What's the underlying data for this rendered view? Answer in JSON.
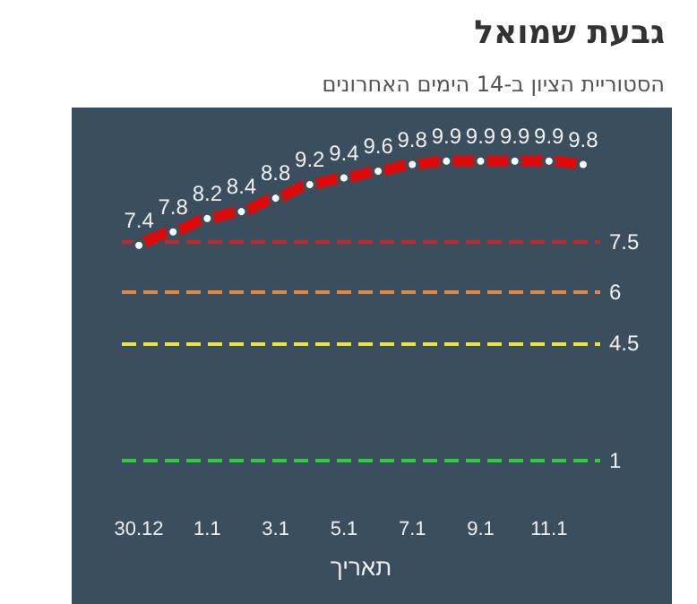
{
  "chart_data": {
    "type": "line",
    "title": "גבעת שמואל",
    "subtitle": "הסטוריית הציון ב-14 הימים האחרונים",
    "xlabel": "תאריך",
    "categories": [
      "30.12",
      null,
      "1.1",
      null,
      "3.1",
      null,
      "5.1",
      null,
      "7.1",
      null,
      "9.1",
      null,
      "11.1",
      null
    ],
    "series": [
      {
        "color": "#dd0a0a",
        "values": [
          7.4,
          7.8,
          8.2,
          8.4,
          8.8,
          9.2,
          9.4,
          9.6,
          9.8,
          9.9,
          9.9,
          9.9,
          9.9,
          9.8
        ]
      }
    ],
    "data_labels": true,
    "marker": "circle",
    "line_style": "solid",
    "grid": false,
    "tick_labels": "x",
    "ref_lines": [
      {
        "axis": "y",
        "value": 7.5,
        "label": "7.5",
        "color": "#c62828",
        "line_style": "dashed"
      },
      {
        "axis": "y",
        "value": 6,
        "label": "6",
        "color": "#d98a4a",
        "line_style": "dashed"
      },
      {
        "axis": "y",
        "value": 4.5,
        "label": "4.5",
        "color": "#f0e43c",
        "line_style": "dashed"
      },
      {
        "axis": "y",
        "value": 1,
        "label": "1",
        "color": "#2ed03a",
        "line_style": "dashed"
      }
    ]
  }
}
